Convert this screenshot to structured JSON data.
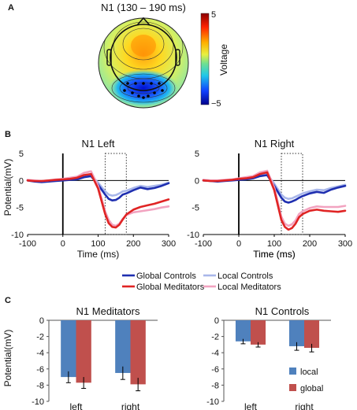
{
  "panels": {
    "a": "A",
    "b": "B",
    "c": "C"
  },
  "colors": {
    "global_controls": "#1f2fb0",
    "local_controls": "#a9b7ea",
    "global_meditators": "#e02424",
    "local_meditators": "#f2a3c0",
    "local_bar": "#4f81bd",
    "global_bar": "#c0504d"
  },
  "chart_data": [
    {
      "type": "heatmap",
      "title": "N1 (130 – 190 ms)",
      "colorbar_label": "Voltage",
      "colorbar_ticks": [
        "5",
        "−5"
      ],
      "range": [
        -5,
        5
      ]
    },
    {
      "type": "line",
      "title": "N1 Left",
      "xlabel": "Time (ms)",
      "ylabel": "Potential(mV)",
      "xlim": [
        -100,
        300
      ],
      "ylim": [
        -10,
        5
      ],
      "xticks": [
        "-100",
        "0",
        "100",
        "200",
        "300"
      ],
      "yticks": [
        "5",
        "0",
        "-5",
        "-10"
      ],
      "window": [
        120,
        180
      ],
      "x": [
        -100,
        -80,
        -60,
        -40,
        -20,
        0,
        20,
        40,
        60,
        80,
        100,
        120,
        130,
        140,
        150,
        160,
        170,
        180,
        200,
        220,
        240,
        260,
        280,
        300
      ],
      "series": [
        {
          "name": "Global Controls",
          "color": "global_controls",
          "values": [
            0,
            -0.2,
            -0.3,
            -0.2,
            -0.1,
            0,
            0.1,
            0.2,
            0.6,
            0.8,
            -0.8,
            -2.6,
            -3.4,
            -3.7,
            -3.6,
            -3.2,
            -2.6,
            -2.4,
            -1.8,
            -1.3,
            -1.6,
            -1.4,
            -1.0,
            -0.5
          ]
        },
        {
          "name": "Local Controls",
          "color": "local_controls",
          "values": [
            0.1,
            -0.1,
            -0.2,
            -0.1,
            0,
            0.1,
            0.2,
            0.3,
            0.7,
            1.0,
            -0.4,
            -2.0,
            -2.6,
            -2.8,
            -2.7,
            -2.4,
            -2.0,
            -1.9,
            -1.4,
            -1.0,
            -1.2,
            -1.0,
            -0.8,
            -0.4
          ]
        },
        {
          "name": "Global Meditators",
          "color": "global_meditators",
          "values": [
            0,
            -0.1,
            -0.1,
            0,
            0.1,
            0.2,
            0.3,
            0.5,
            1.0,
            1.2,
            -1.5,
            -6.2,
            -7.9,
            -8.6,
            -8.7,
            -8.2,
            -7.2,
            -6.3,
            -5.4,
            -4.9,
            -4.6,
            -4.3,
            -3.9,
            -3.5
          ]
        },
        {
          "name": "Local Meditators",
          "color": "local_meditators",
          "values": [
            0.1,
            0,
            -0.1,
            0,
            0.2,
            0.3,
            0.5,
            0.7,
            1.4,
            1.7,
            -1.0,
            -5.7,
            -7.3,
            -8.2,
            -8.4,
            -8.0,
            -7.1,
            -6.4,
            -5.9,
            -5.7,
            -5.5,
            -5.3,
            -5.0,
            -4.8
          ]
        }
      ]
    },
    {
      "type": "line",
      "title": "N1 Right",
      "xlabel": "Time (ms)",
      "ylabel": "",
      "xlim": [
        -100,
        300
      ],
      "ylim": [
        -10,
        5
      ],
      "xticks": [
        "-100",
        "0",
        "100",
        "200",
        "300"
      ],
      "yticks": [
        "5",
        "0",
        "-5",
        "-10"
      ],
      "window": [
        120,
        180
      ],
      "x": [
        -100,
        -80,
        -60,
        -40,
        -20,
        0,
        20,
        40,
        60,
        80,
        100,
        120,
        130,
        140,
        150,
        160,
        170,
        180,
        200,
        220,
        240,
        260,
        280,
        300
      ],
      "series": [
        {
          "name": "Global Controls",
          "color": "global_controls",
          "values": [
            0,
            -0.1,
            -0.2,
            -0.1,
            0,
            0.1,
            0.2,
            0.4,
            0.8,
            1.0,
            -1.0,
            -3.2,
            -3.9,
            -4.1,
            -3.9,
            -3.6,
            -3.2,
            -2.9,
            -2.4,
            -2.1,
            -2.3,
            -1.7,
            -1.3,
            -1.0
          ]
        },
        {
          "name": "Local Controls",
          "color": "local_controls",
          "values": [
            0.1,
            0,
            -0.1,
            0,
            0.1,
            0.2,
            0.3,
            0.5,
            0.9,
            1.2,
            -0.6,
            -2.6,
            -3.2,
            -3.4,
            -3.3,
            -3.0,
            -2.7,
            -2.4,
            -2.0,
            -1.7,
            -1.8,
            -1.4,
            -1.1,
            -0.8
          ]
        },
        {
          "name": "Global Meditators",
          "color": "global_meditators",
          "values": [
            0,
            -0.1,
            -0.1,
            0,
            0.1,
            0.3,
            0.4,
            0.6,
            1.2,
            1.5,
            -1.8,
            -7.3,
            -8.6,
            -9.1,
            -8.8,
            -8.0,
            -6.8,
            -6.2,
            -5.6,
            -5.4,
            -5.6,
            -5.7,
            -5.8,
            -5.6
          ]
        },
        {
          "name": "Local Meditators",
          "color": "local_meditators",
          "values": [
            0.1,
            0,
            0,
            0.1,
            0.2,
            0.4,
            0.6,
            0.8,
            1.5,
            1.8,
            -1.3,
            -6.7,
            -8.0,
            -8.4,
            -8.1,
            -7.4,
            -6.2,
            -5.7,
            -5.1,
            -4.8,
            -4.9,
            -4.9,
            -4.9,
            -4.7
          ]
        }
      ]
    },
    {
      "type": "bar",
      "title": "N1 Meditators",
      "ylabel": "Potential(mV)",
      "ylim": [
        -10,
        0
      ],
      "yticks": [
        "0",
        "-2",
        "-4",
        "-6",
        "-8",
        "-10"
      ],
      "categories": [
        "left",
        "right"
      ],
      "series": [
        {
          "name": "local",
          "color": "local_bar",
          "values": [
            -7.0,
            -6.5
          ],
          "errors": [
            0.7,
            0.8
          ]
        },
        {
          "name": "global",
          "color": "global_bar",
          "values": [
            -7.7,
            -7.9
          ],
          "errors": [
            0.7,
            0.8
          ]
        }
      ]
    },
    {
      "type": "bar",
      "title": "N1 Controls",
      "ylabel": "",
      "ylim": [
        -10,
        0
      ],
      "yticks": [
        "0",
        "-2",
        "-4",
        "-6",
        "-8",
        "-10"
      ],
      "categories": [
        "left",
        "right"
      ],
      "series": [
        {
          "name": "local",
          "color": "local_bar",
          "values": [
            -2.6,
            -3.2
          ],
          "errors": [
            0.3,
            0.5
          ]
        },
        {
          "name": "global",
          "color": "global_bar",
          "values": [
            -3.0,
            -3.4
          ],
          "errors": [
            0.3,
            0.5
          ]
        }
      ]
    }
  ],
  "legend_b": [
    "Global Controls",
    "Local Controls",
    "Global Meditators",
    "Local Meditators"
  ],
  "legend_c": [
    "local",
    "global"
  ]
}
